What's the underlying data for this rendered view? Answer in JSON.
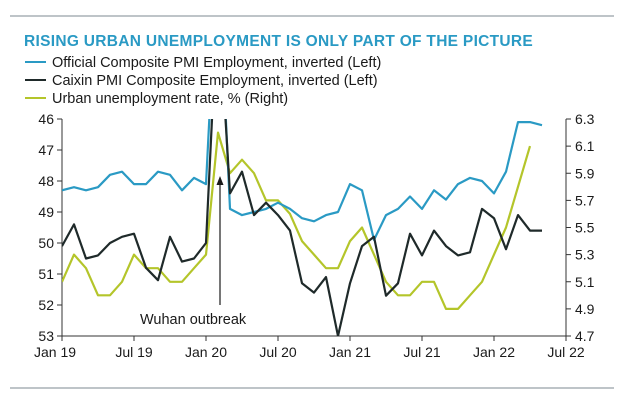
{
  "chart_data": {
    "type": "line",
    "title": "RISING URBAN UNEMPLOYMENT IS ONLY PART OF THE PICTURE",
    "x_ticks": [
      "Jan 19",
      "Jul 19",
      "Jan 20",
      "Jul 20",
      "Jan 21",
      "Jul 21",
      "Jan 22",
      "Jul 22"
    ],
    "x_range": [
      "2019-01",
      "2022-07"
    ],
    "left_axis": {
      "ticks": [
        46,
        47,
        48,
        49,
        50,
        51,
        52,
        53
      ],
      "range": [
        46,
        53
      ],
      "inverted": true
    },
    "right_axis": {
      "ticks": [
        6.3,
        6.1,
        5.9,
        5.7,
        5.5,
        5.3,
        5.1,
        4.9,
        4.7
      ],
      "range": [
        4.7,
        6.3
      ]
    },
    "series": [
      {
        "name": "Official Composite PMI Employment, inverted (Left)",
        "axis": "left",
        "color": "#2a9ac4",
        "dates": [
          "2019-01",
          "2019-02",
          "2019-03",
          "2019-04",
          "2019-05",
          "2019-06",
          "2019-07",
          "2019-08",
          "2019-09",
          "2019-10",
          "2019-11",
          "2019-12",
          "2020-01",
          "2020-02",
          "2020-03",
          "2020-04",
          "2020-05",
          "2020-06",
          "2020-07",
          "2020-08",
          "2020-09",
          "2020-10",
          "2020-11",
          "2020-12",
          "2021-01",
          "2021-02",
          "2021-03",
          "2021-04",
          "2021-05",
          "2021-06",
          "2021-07",
          "2021-08",
          "2021-09",
          "2021-10",
          "2021-11",
          "2021-12",
          "2022-01",
          "2022-02",
          "2022-03",
          "2022-04",
          "2022-05"
        ],
        "values": [
          48.3,
          48.2,
          48.3,
          48.2,
          47.8,
          47.7,
          48.1,
          48.1,
          47.7,
          47.8,
          48.3,
          47.9,
          48.1,
          40.5,
          48.9,
          49.1,
          49.0,
          48.9,
          48.7,
          48.9,
          49.2,
          49.3,
          49.1,
          49.0,
          48.1,
          48.3,
          49.9,
          49.1,
          48.9,
          48.5,
          48.9,
          48.3,
          48.6,
          48.1,
          47.9,
          48.0,
          48.4,
          47.7,
          46.1,
          46.1,
          46.2
        ]
      },
      {
        "name": "Caixin PMI Composite Employment, inverted (Left)",
        "axis": "left",
        "color": "#1f2a2a",
        "dates": [
          "2019-01",
          "2019-02",
          "2019-03",
          "2019-04",
          "2019-05",
          "2019-06",
          "2019-07",
          "2019-08",
          "2019-09",
          "2019-10",
          "2019-11",
          "2019-12",
          "2020-01",
          "2020-02",
          "2020-03",
          "2020-04",
          "2020-05",
          "2020-06",
          "2020-07",
          "2020-08",
          "2020-09",
          "2020-10",
          "2020-11",
          "2020-12",
          "2021-01",
          "2021-02",
          "2021-03",
          "2021-04",
          "2021-05",
          "2021-06",
          "2021-07",
          "2021-08",
          "2021-09",
          "2021-10",
          "2021-11",
          "2021-12",
          "2022-01",
          "2022-02",
          "2022-03",
          "2022-04",
          "2022-05"
        ],
        "values": [
          50.1,
          49.4,
          50.5,
          50.4,
          50.0,
          49.8,
          49.7,
          50.8,
          51.2,
          49.8,
          50.6,
          50.5,
          50.0,
          42.0,
          48.4,
          47.7,
          49.1,
          48.7,
          49.1,
          49.6,
          51.3,
          51.6,
          51.1,
          53.0,
          51.3,
          50.1,
          49.8,
          51.7,
          51.3,
          49.7,
          50.4,
          49.6,
          50.1,
          50.4,
          50.3,
          48.9,
          49.2,
          50.2,
          49.1,
          49.6,
          49.6
        ]
      },
      {
        "name": "Urban unemployment rate, % (Right)",
        "axis": "right",
        "color": "#b4c52a",
        "dates": [
          "2019-01",
          "2019-02",
          "2019-03",
          "2019-04",
          "2019-05",
          "2019-06",
          "2019-07",
          "2019-08",
          "2019-09",
          "2019-10",
          "2019-11",
          "2019-12",
          "2020-01",
          "2020-02",
          "2020-03",
          "2020-04",
          "2020-05",
          "2020-06",
          "2020-07",
          "2020-08",
          "2020-09",
          "2020-10",
          "2020-11",
          "2020-12",
          "2021-01",
          "2021-02",
          "2021-03",
          "2021-04",
          "2021-05",
          "2021-06",
          "2021-07",
          "2021-08",
          "2021-09",
          "2021-10",
          "2021-11",
          "2021-12",
          "2022-01",
          "2022-02",
          "2022-03",
          "2022-04"
        ],
        "values": [
          5.1,
          5.3,
          5.2,
          5.0,
          5.0,
          5.1,
          5.3,
          5.2,
          5.2,
          5.1,
          5.1,
          5.2,
          5.3,
          6.2,
          5.9,
          6.0,
          5.9,
          5.7,
          5.7,
          5.6,
          5.4,
          5.3,
          5.2,
          5.2,
          5.4,
          5.5,
          5.3,
          5.1,
          5.0,
          5.0,
          5.1,
          5.1,
          4.9,
          4.9,
          5.0,
          5.1,
          5.3,
          5.5,
          5.8,
          6.1
        ]
      }
    ],
    "annotations": [
      {
        "text": "Wuhan outbreak",
        "target": "2020-02"
      }
    ],
    "grid": false,
    "legend_position": "top-left"
  }
}
